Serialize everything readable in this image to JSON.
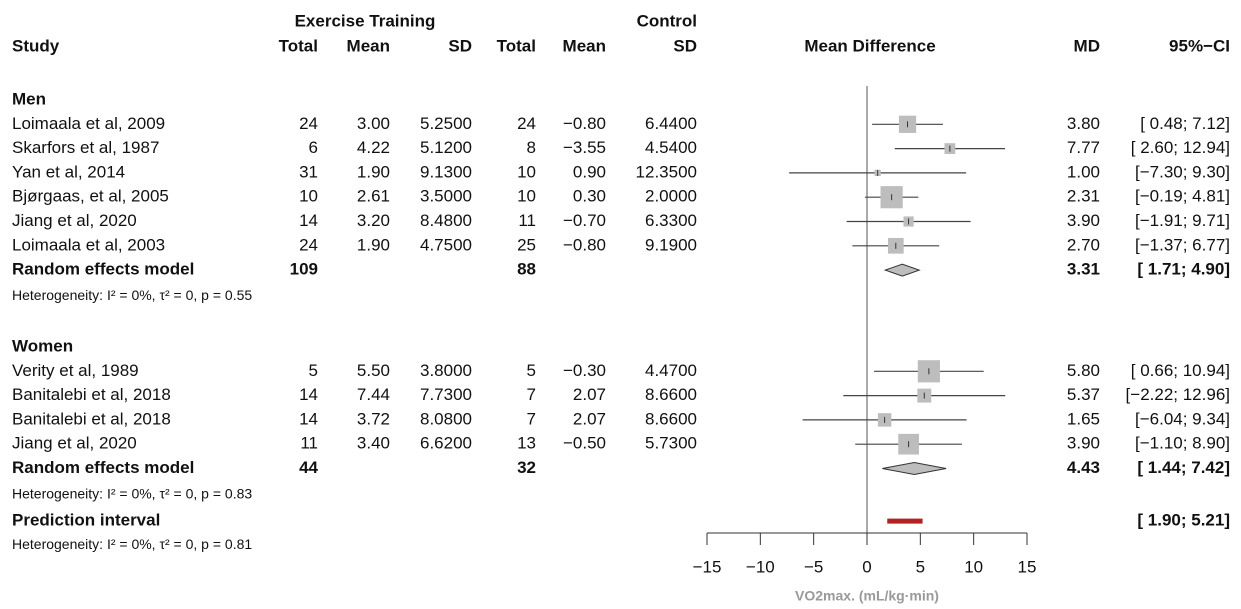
{
  "chart_data": {
    "type": "forest",
    "header": {
      "study": "Study",
      "experimental": "Exercise Training",
      "control": "Control",
      "columns": [
        "Total",
        "Mean",
        "SD",
        "Total",
        "Mean",
        "SD"
      ],
      "effect": "Mean Difference",
      "md": "MD",
      "ci": "95%−CI"
    },
    "groups": [
      {
        "name": "Men",
        "studies": [
          {
            "study": "Loimaala et al, 2009",
            "e_total": "24",
            "e_mean": "3.00",
            "e_sd": "5.2500",
            "c_total": "24",
            "c_mean": "−0.80",
            "c_sd": "6.4400",
            "md": 3.8,
            "lower": 0.48,
            "upper": 7.12,
            "weight": 23,
            "md_label": "3.80",
            "ci_label": "[ 0.48; 7.12]"
          },
          {
            "study": "Skarfors et al, 1987",
            "e_total": "6",
            "e_mean": "4.22",
            "e_sd": "5.1200",
            "c_total": "8",
            "c_mean": "−3.55",
            "c_sd": "4.5400",
            "md": 7.77,
            "lower": 2.6,
            "upper": 12.94,
            "weight": 9,
            "md_label": "7.77",
            "ci_label": "[ 2.60; 12.94]"
          },
          {
            "study": "Yan et al, 2014",
            "e_total": "31",
            "e_mean": "1.90",
            "e_sd": "9.1300",
            "c_total": "10",
            "c_mean": "0.90",
            "c_sd": "12.3500",
            "md": 1.0,
            "lower": -7.3,
            "upper": 9.3,
            "weight": 3,
            "md_label": "1.00",
            "ci_label": "[−7.30; 9.30]"
          },
          {
            "study": "Bjørgaas, et al, 2005",
            "e_total": "10",
            "e_mean": "2.61",
            "e_sd": "3.5000",
            "c_total": "10",
            "c_mean": "0.30",
            "c_sd": "2.0000",
            "md": 2.31,
            "lower": -0.19,
            "upper": 4.81,
            "weight": 38,
            "md_label": "2.31",
            "ci_label": "[−0.19; 4.81]"
          },
          {
            "study": "Jiang et al, 2020",
            "e_total": "14",
            "e_mean": "3.20",
            "e_sd": "8.4800",
            "c_total": "11",
            "c_mean": "−0.70",
            "c_sd": "6.3300",
            "md": 3.9,
            "lower": -1.91,
            "upper": 9.71,
            "weight": 8,
            "md_label": "3.90",
            "ci_label": "[−1.91; 9.71]"
          },
          {
            "study": "Loimaala et al, 2003",
            "e_total": "24",
            "e_mean": "1.90",
            "e_sd": "4.7500",
            "c_total": "25",
            "c_mean": "−0.80",
            "c_sd": "9.1900",
            "md": 2.7,
            "lower": -1.37,
            "upper": 6.77,
            "weight": 19,
            "md_label": "2.70",
            "ci_label": "[−1.37; 6.77]"
          }
        ],
        "model": {
          "label": "Random effects model",
          "e_total": "109",
          "c_total": "88",
          "md": 3.31,
          "lower": 1.71,
          "upper": 4.9,
          "md_label": "3.31",
          "ci_label": "[ 1.71; 4.90]"
        },
        "heterogeneity": "Heterogeneity: I² = 0%, τ² = 0, p = 0.55"
      },
      {
        "name": "Women",
        "studies": [
          {
            "study": "Verity et al, 1989",
            "e_total": "5",
            "e_mean": "5.50",
            "e_sd": "3.8000",
            "c_total": "5",
            "c_mean": "−0.30",
            "c_sd": "4.4700",
            "md": 5.8,
            "lower": 0.66,
            "upper": 10.94,
            "weight": 38,
            "md_label": "5.80",
            "ci_label": "[ 0.66; 10.94]"
          },
          {
            "study": "Banitalebi et al, 2018",
            "e_total": "14",
            "e_mean": "7.44",
            "e_sd": "7.7300",
            "c_total": "7",
            "c_mean": "2.07",
            "c_sd": "8.6600",
            "md": 5.37,
            "lower": -2.22,
            "upper": 12.96,
            "weight": 15,
            "md_label": "5.37",
            "ci_label": "[−2.22; 12.96]"
          },
          {
            "study": "Banitalebi et al, 2018",
            "e_total": "14",
            "e_mean": "3.72",
            "e_sd": "8.0800",
            "c_total": "7",
            "c_mean": "2.07",
            "c_sd": "8.6600",
            "md": 1.65,
            "lower": -6.04,
            "upper": 9.34,
            "weight": 14,
            "md_label": "1.65",
            "ci_label": "[−6.04; 9.34]"
          },
          {
            "study": "Jiang et al, 2020",
            "e_total": "11",
            "e_mean": "3.40",
            "e_sd": "6.6200",
            "c_total": "13",
            "c_mean": "−0.50",
            "c_sd": "5.7300",
            "md": 3.9,
            "lower": -1.1,
            "upper": 8.9,
            "weight": 33,
            "md_label": "3.90",
            "ci_label": "[−1.10; 8.90]"
          }
        ],
        "model": {
          "label": "Random effects model",
          "e_total": "44",
          "c_total": "32",
          "md": 4.43,
          "lower": 1.44,
          "upper": 7.42,
          "md_label": "4.43",
          "ci_label": "[ 1.44; 7.42]"
        },
        "heterogeneity": "Heterogeneity: I² = 0%, τ² = 0, p = 0.83"
      }
    ],
    "prediction": {
      "label": "Prediction interval",
      "lower": 1.9,
      "upper": 5.21,
      "color": "#b22222",
      "ci_label": "[ 1.90; 5.21]",
      "heterogeneity": "Heterogeneity: I² = 0%, τ² = 0, p = 0.81"
    },
    "xlim": [
      -15,
      15
    ],
    "xticks": [
      {
        "value": -15,
        "label": "−15"
      },
      {
        "value": -10,
        "label": "−10"
      },
      {
        "value": -5,
        "label": "−5"
      },
      0,
      5,
      10,
      15
    ],
    "xlabel": "VO2max. (mL/kg·min)"
  }
}
